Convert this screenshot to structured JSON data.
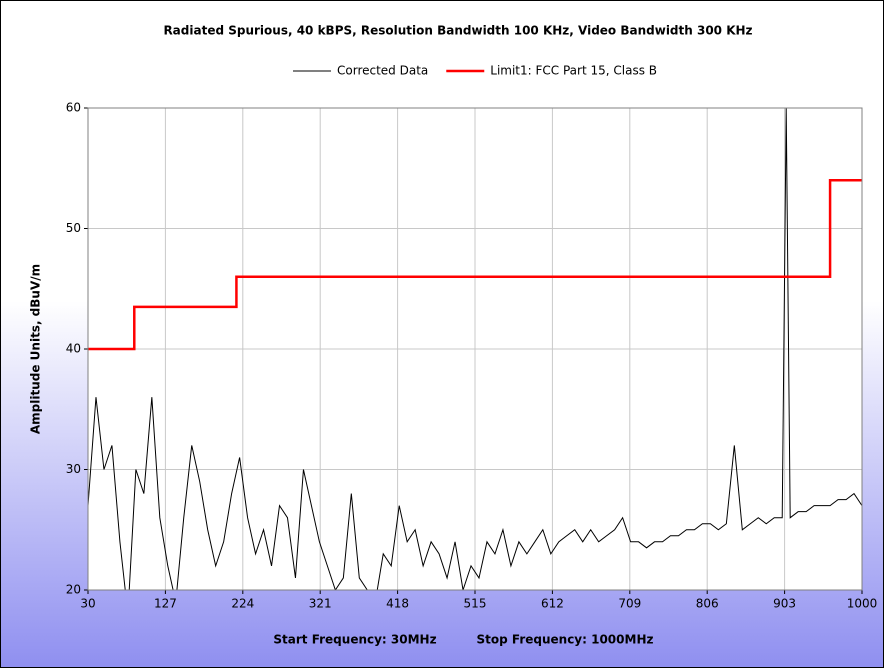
{
  "chart_data": {
    "type": "line",
    "title": "Radiated Spurious, 40 kBPS, Resolution Bandwidth 100 KHz, Video Bandwidth 300 KHz",
    "y_label": "Amplitude Units, dBuV/m",
    "annotations": [
      "Start Frequency: 30MHz",
      "Stop Frequency: 1000MHz"
    ],
    "xlim": [
      30,
      1000
    ],
    "xticks": [
      30,
      127,
      224,
      321,
      418,
      515,
      612,
      709,
      806,
      903,
      1000
    ],
    "ylim": [
      20,
      60
    ],
    "yticks": [
      20,
      30,
      40,
      50,
      60
    ],
    "grid": true,
    "legend": "top",
    "series": [
      {
        "name": "Corrected Data",
        "color": "#000000",
        "x": [
          30,
          40,
          50,
          60,
          70,
          80,
          90,
          100,
          110,
          120,
          130,
          140,
          150,
          160,
          170,
          180,
          190,
          200,
          210,
          220,
          230,
          240,
          250,
          260,
          270,
          280,
          290,
          300,
          310,
          320,
          330,
          340,
          350,
          360,
          370,
          380,
          390,
          400,
          410,
          420,
          430,
          440,
          450,
          460,
          470,
          480,
          490,
          500,
          510,
          520,
          530,
          540,
          550,
          560,
          570,
          580,
          590,
          600,
          610,
          620,
          630,
          640,
          650,
          660,
          670,
          680,
          690,
          700,
          710,
          720,
          730,
          740,
          750,
          760,
          770,
          780,
          790,
          800,
          810,
          820,
          830,
          840,
          850,
          860,
          870,
          880,
          890,
          900,
          905,
          910,
          920,
          930,
          940,
          950,
          960,
          970,
          980,
          990,
          1000
        ],
        "values": [
          27,
          36,
          30,
          32,
          24,
          18,
          30,
          28,
          36,
          26,
          22,
          19,
          26,
          32,
          29,
          25,
          22,
          24,
          28,
          31,
          26,
          23,
          25,
          22,
          27,
          26,
          21,
          30,
          27,
          24,
          22,
          20,
          21,
          28,
          21,
          20,
          19,
          23,
          22,
          27,
          24,
          25,
          22,
          24,
          23,
          21,
          24,
          20,
          22,
          21,
          24,
          23,
          25,
          22,
          24,
          23,
          24,
          25,
          23,
          24,
          24.5,
          25,
          24,
          25,
          24,
          24.5,
          25,
          26,
          24,
          24,
          23.5,
          24,
          24,
          24.5,
          24.5,
          25,
          25,
          25.5,
          25.5,
          25,
          25.5,
          32,
          25,
          25.5,
          26,
          25.5,
          26,
          26,
          60,
          26,
          26.5,
          26.5,
          27,
          27,
          27,
          27.5,
          27.5,
          28,
          27
        ]
      },
      {
        "name": "Limit1: FCC Part 15, Class B",
        "color": "#ff0000",
        "x": [
          30,
          88,
          88,
          216,
          216,
          960,
          960,
          1000
        ],
        "values": [
          40,
          40,
          43.5,
          43.5,
          46,
          46,
          54,
          54
        ]
      }
    ]
  }
}
